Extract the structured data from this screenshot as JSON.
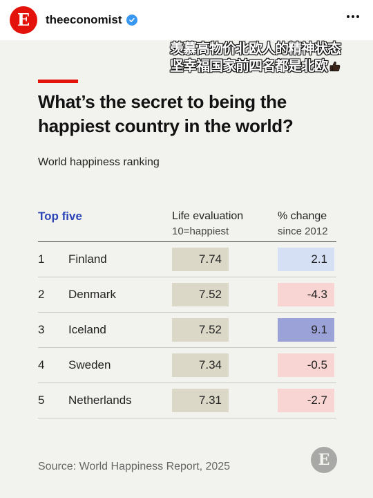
{
  "post": {
    "avatar_letter": "E",
    "username": "theeconomist",
    "brand_color": "#e3120b",
    "verified_color": "#3897f0"
  },
  "overlay": {
    "line1": "羡慕高物价北欧人的精神状态",
    "line2": "坚幸福国家前四名都是北欧",
    "emoji": "thumbs-up"
  },
  "graphic": {
    "headline_line1": "What’s the secret to being the",
    "headline_line2": "happiest country in the world?",
    "subtitle": "World happiness ranking",
    "columns": {
      "top": "Top five",
      "life_title": "Life evaluation",
      "life_sub": "10=happiest",
      "change_title": "% change",
      "change_sub": "since 2012"
    },
    "rows": [
      {
        "rank": "1",
        "country": "Finland",
        "life": "7.74",
        "change": "2.1",
        "change_color": "#d6e0f4"
      },
      {
        "rank": "2",
        "country": "Denmark",
        "life": "7.52",
        "change": "-4.3",
        "change_color": "#f8d5d2"
      },
      {
        "rank": "3",
        "country": "Iceland",
        "life": "7.52",
        "change": "9.1",
        "change_color": "#9aa2d8"
      },
      {
        "rank": "4",
        "country": "Sweden",
        "life": "7.34",
        "change": "-0.5",
        "change_color": "#f8d5d2"
      },
      {
        "rank": "5",
        "country": "Netherlands",
        "life": "7.31",
        "change": "-2.7",
        "change_color": "#f8d5d2"
      }
    ],
    "source": "Source: World Happiness Report, 2025",
    "logo_letter": "E"
  }
}
